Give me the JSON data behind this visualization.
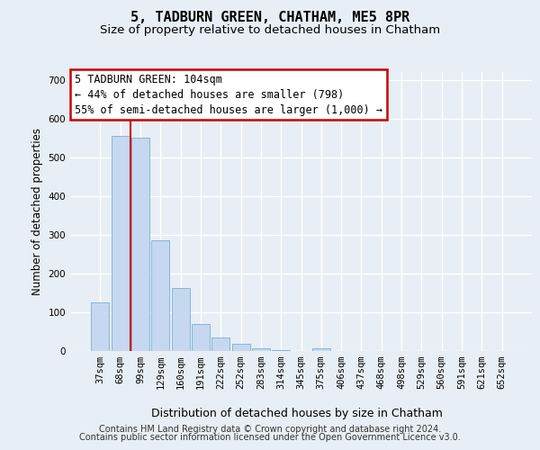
{
  "title": "5, TADBURN GREEN, CHATHAM, ME5 8PR",
  "subtitle": "Size of property relative to detached houses in Chatham",
  "xlabel": "Distribution of detached houses by size in Chatham",
  "ylabel": "Number of detached properties",
  "footer_line1": "Contains HM Land Registry data © Crown copyright and database right 2024.",
  "footer_line2": "Contains public sector information licensed under the Open Government Licence v3.0.",
  "categories": [
    "37sqm",
    "68sqm",
    "99sqm",
    "129sqm",
    "160sqm",
    "191sqm",
    "222sqm",
    "252sqm",
    "283sqm",
    "314sqm",
    "345sqm",
    "375sqm",
    "406sqm",
    "437sqm",
    "468sqm",
    "498sqm",
    "529sqm",
    "560sqm",
    "591sqm",
    "621sqm",
    "652sqm"
  ],
  "values": [
    125,
    555,
    550,
    285,
    163,
    70,
    35,
    18,
    8,
    2,
    0,
    8,
    0,
    0,
    0,
    0,
    0,
    0,
    0,
    0,
    0
  ],
  "bar_color": "#c5d8ef",
  "bar_edgecolor": "#7bafd4",
  "vline_x": 1.5,
  "vline_color": "#cc0000",
  "annotation_text": "5 TADBURN GREEN: 104sqm\n← 44% of detached houses are smaller (798)\n55% of semi-detached houses are larger (1,000) →",
  "annotation_box_facecolor": "white",
  "annotation_box_edgecolor": "#cc0000",
  "ylim": [
    0,
    720
  ],
  "yticks": [
    0,
    100,
    200,
    300,
    400,
    500,
    600,
    700
  ],
  "bg_color": "#e8eef5",
  "grid_color": "white",
  "title_fontsize": 11,
  "subtitle_fontsize": 9.5,
  "ylabel_fontsize": 8.5,
  "xlabel_fontsize": 9,
  "tick_fontsize": 7.5,
  "annot_fontsize": 8.5,
  "footer_fontsize": 7
}
